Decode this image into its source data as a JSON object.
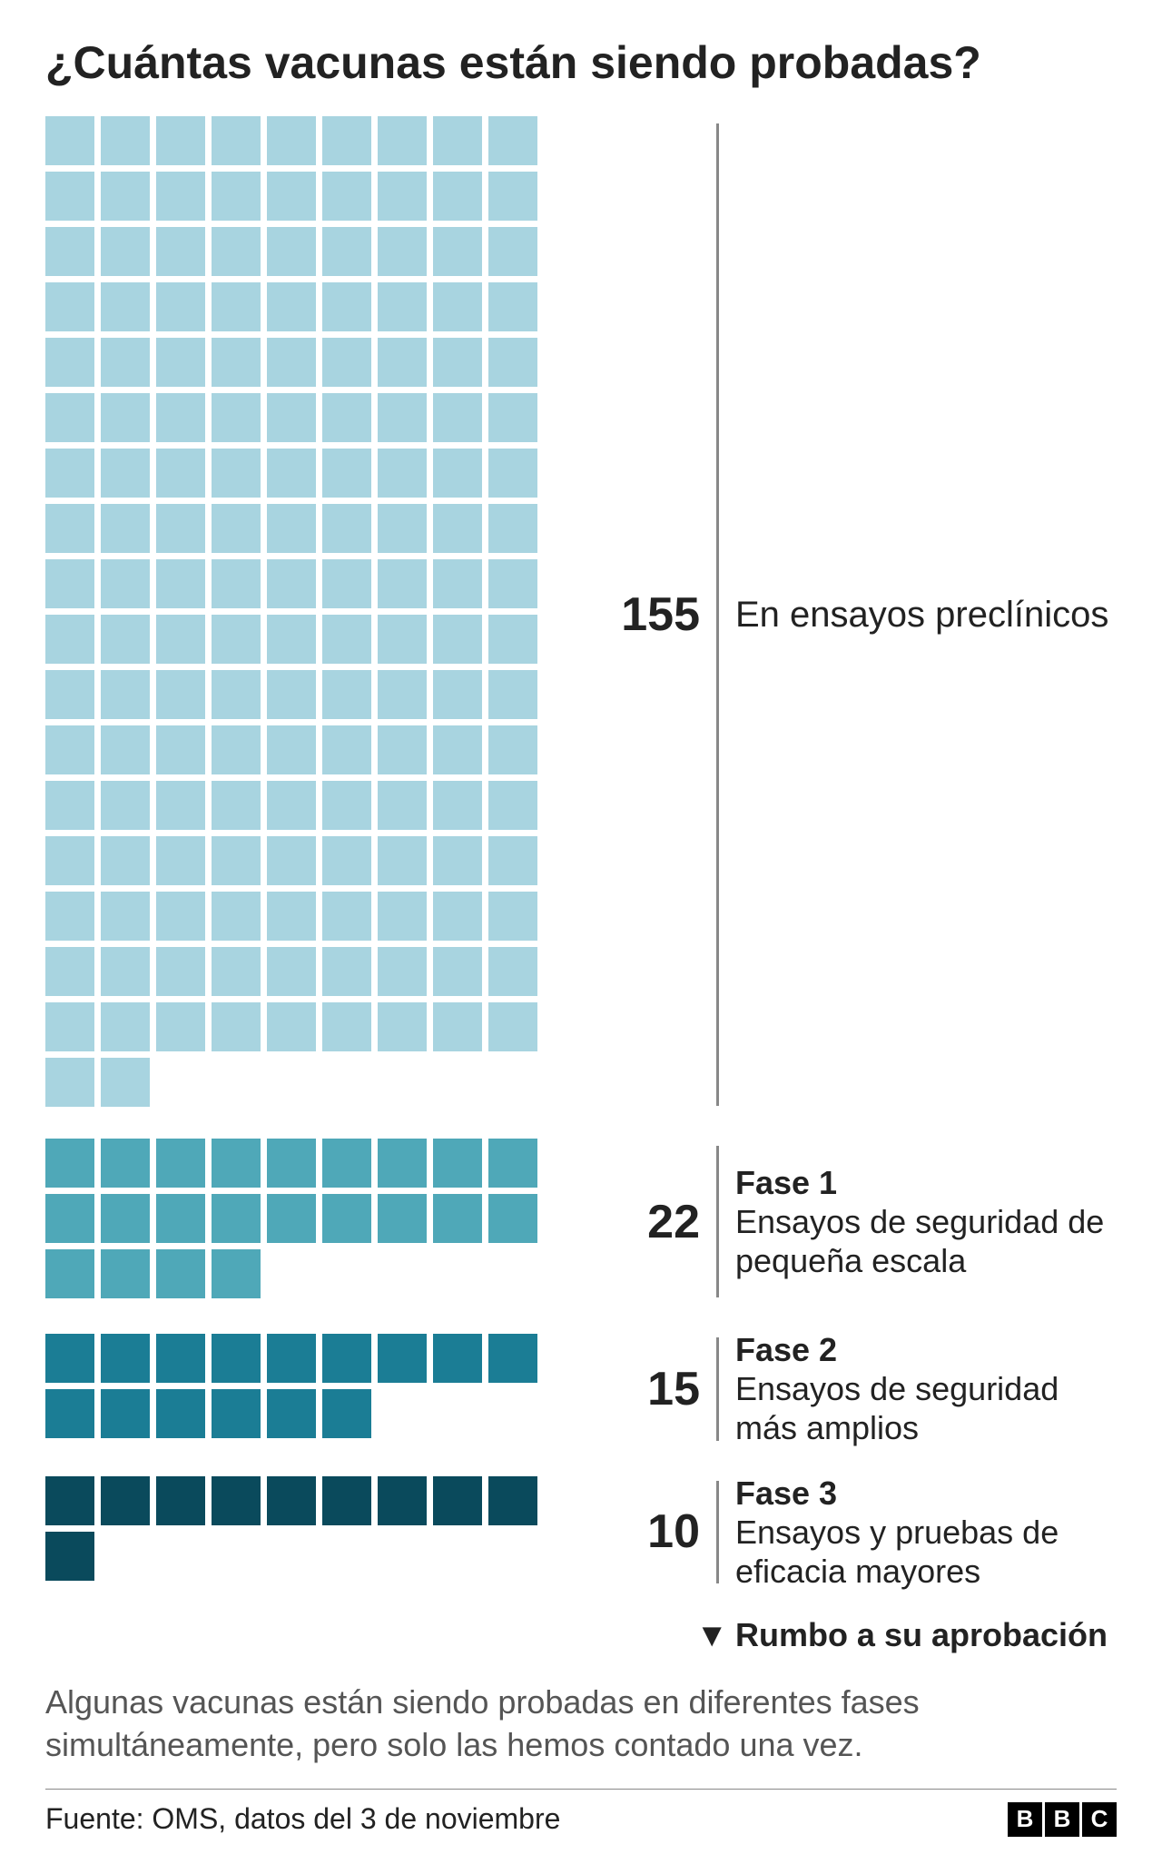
{
  "title": "¿Cuántas vacunas están siendo probadas?",
  "chart": {
    "type": "pictogram",
    "columns": 10,
    "square_size": 54,
    "square_gap": 7,
    "squares_width": 610,
    "count_width": 120,
    "desc_width": 420,
    "background_color": "#ffffff",
    "divider_color": "#888888",
    "phases": [
      {
        "count": "155",
        "color": "#a8d4e0",
        "title": "",
        "subtitle": "En ensayos preclínicos",
        "plain": true
      },
      {
        "count": "22",
        "color": "#4fa8b8",
        "title": "Fase 1",
        "subtitle": "Ensayos de seguridad de pequeña escala",
        "plain": false
      },
      {
        "count": "15",
        "color": "#1b7d95",
        "title": "Fase 2",
        "subtitle": "Ensayos de seguridad más amplios",
        "plain": false
      },
      {
        "count": "10",
        "color": "#0a4a5c",
        "title": "Fase 3",
        "subtitle": "Ensayos y pruebas de eficacia mayores",
        "plain": false
      }
    ]
  },
  "arrow_label": "Rumbo a su aprobación",
  "note": "Algunas vacunas están siendo probadas en diferentes fases simultáneamente, pero solo las hemos contado una vez.",
  "source": "Fuente: OMS, datos del 3 de noviembre",
  "logo_letters": [
    "B",
    "B",
    "C"
  ]
}
